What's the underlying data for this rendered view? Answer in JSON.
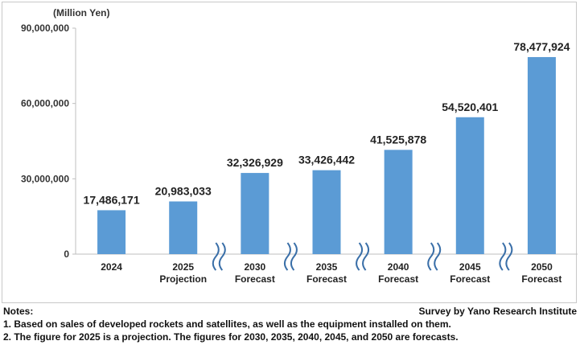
{
  "chart_data": {
    "type": "bar",
    "unit_label": "(Million Yen)",
    "categories": [
      [
        "2024"
      ],
      [
        "2025",
        "Projection"
      ],
      [
        "2030",
        "Forecast"
      ],
      [
        "2035",
        "Forecast"
      ],
      [
        "2040",
        "Forecast"
      ],
      [
        "2045",
        "Forecast"
      ],
      [
        "2050",
        "Forecast"
      ]
    ],
    "values": [
      17486171,
      20983033,
      32326929,
      33426442,
      41525878,
      54520401,
      78477924
    ],
    "data_labels": [
      "17,486,171",
      "20,983,033",
      "32,326,929",
      "33,426,442",
      "41,525,878",
      "54,520,401",
      "78,477,924"
    ],
    "y_ticks": [
      0,
      30000000,
      60000000,
      90000000
    ],
    "y_tick_labels": [
      "0",
      "30,000,000",
      "60,000,000",
      "90,000,000"
    ],
    "ylim": [
      0,
      90000000
    ],
    "bar_color": "#5B9BD5",
    "axis_break_color": "#3A6FA8",
    "grid": false,
    "legend": "none"
  },
  "notes": {
    "heading": "Notes:",
    "line1": "1. Based on sales of developed rockets and satellites, as well as the equipment installed on them.",
    "line2": "2. The figure for 2025 is a projection. The figures for 2030, 2035, 2040, 2045, and 2050 are forecasts."
  },
  "source": "Survey by Yano Research Institute"
}
